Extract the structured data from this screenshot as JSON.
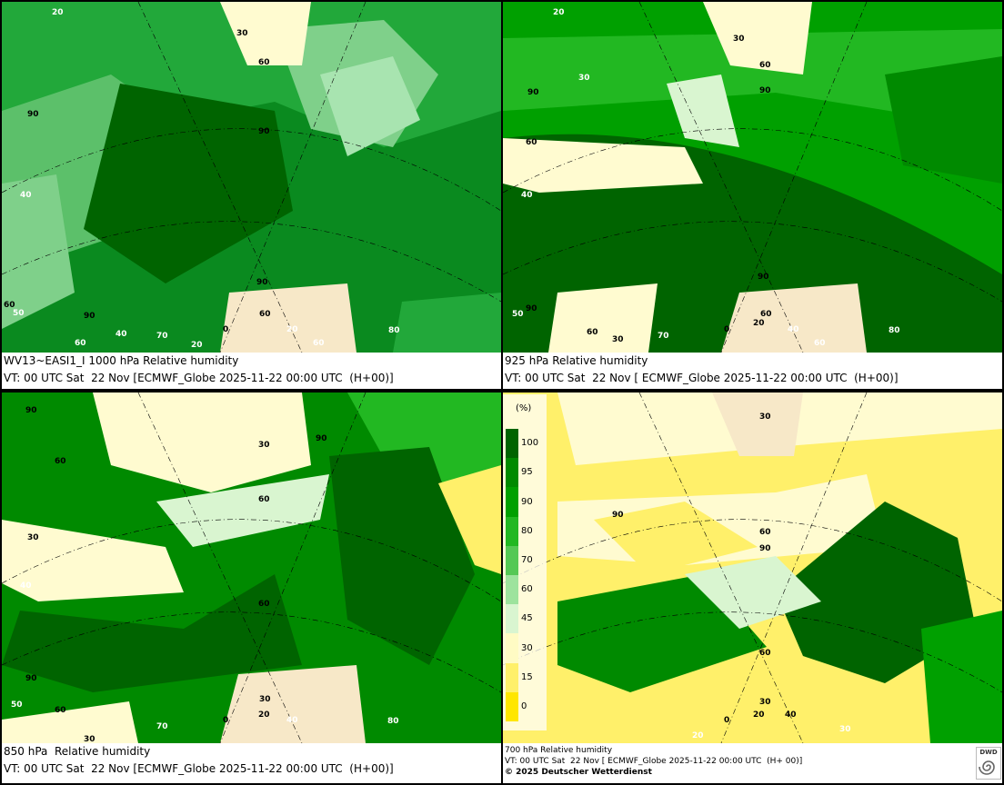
{
  "panels": [
    {
      "caption_line1": "WV13~EASI1_I 1000 hPa Relative humidity",
      "caption_line2": "VT: 00 UTC Sat  22 Nov [ECMWF_Globe 2025-11-22 00:00 UTC  (H+00)]",
      "contour_labels": [
        "20",
        "30",
        "60",
        "90",
        "90",
        "40",
        "90",
        "60",
        "90",
        "50",
        "70",
        "60",
        "40",
        "20",
        "0",
        "80",
        "60",
        "60"
      ]
    },
    {
      "caption_line1": "925 hPa Relative humidity",
      "caption_line2": "VT: 00 UTC Sat  22 Nov [ ECMWF_Globe 2025-11-22 00:00 UTC  (H+00)]",
      "contour_labels": [
        "20",
        "30",
        "60",
        "90",
        "30",
        "90",
        "60",
        "40",
        "90",
        "60",
        "90",
        "50",
        "60",
        "30",
        "70",
        "0",
        "20",
        "40",
        "80",
        "60"
      ]
    },
    {
      "caption_line1": "850 hPa  Relative humidity",
      "caption_line2": "VT: 00 UTC Sat  22 Nov [ECMWF_Globe 2025-11-22 00:00 UTC  (H+00)]",
      "contour_labels": [
        "90",
        "30",
        "90",
        "60",
        "60",
        "30",
        "40",
        "60",
        "90",
        "50",
        "60",
        "30",
        "70",
        "0",
        "20",
        "30",
        "40",
        "80"
      ]
    },
    {
      "caption_line1": "700 hPa Relative humidity",
      "caption_line2": "VT: 00 UTC Sat  22 Nov [ ECMWF_Globe 2025-11-22 00:00 UTC  (H+ 00)]",
      "caption_line3": "© 2025 Deutscher Wetterdienst",
      "contour_labels": [
        "30",
        "90",
        "60",
        "90",
        "60",
        "30",
        "40",
        "20",
        "0",
        "20",
        "30"
      ]
    }
  ],
  "legend": {
    "unit": "(%)",
    "ticks": [
      "100",
      "95",
      "90",
      "80",
      "70",
      "60",
      "45",
      "30",
      "15",
      "0"
    ],
    "colors": [
      "#006400",
      "#008a00",
      "#00a000",
      "#22b822",
      "#55c855",
      "#9de39d",
      "#d9f5d0",
      "#fffbc4",
      "#fff06a",
      "#ffe600"
    ]
  },
  "logo": {
    "text": "DWD",
    "icon": "dwd-spiral-icon"
  },
  "colors": {
    "dark_green": "#006400",
    "mid_green": "#00a000",
    "light_green": "#7fd77f",
    "pale": "#d9f5d0",
    "cream": "#fffbd0",
    "yellow": "#fff06a",
    "land_hatch": "#c89060"
  }
}
